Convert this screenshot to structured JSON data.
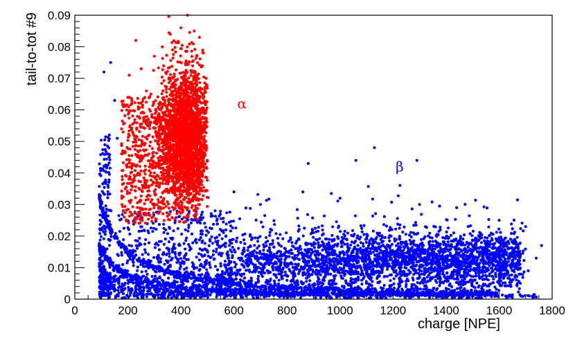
{
  "chart_data": {
    "type": "scatter",
    "title": "",
    "xlabel": "charge [NPE]",
    "ylabel": "tail-to-tot #9",
    "xlim": [
      0,
      1800
    ],
    "ylim": [
      0,
      0.09
    ],
    "x_ticks": [
      "0",
      "200",
      "400",
      "600",
      "800",
      "1000",
      "1200",
      "1400",
      "1600",
      "1800"
    ],
    "y_ticks": [
      "0",
      "0.01",
      "0.02",
      "0.03",
      "0.04",
      "0.05",
      "0.06",
      "0.07",
      "0.08",
      "0.09"
    ],
    "grid": false,
    "legend": "none",
    "series": [
      {
        "color": "#ff0000",
        "label": "α",
        "x_range": [
          170,
          500
        ],
        "y_range": [
          0.023,
          0.09
        ],
        "peak_x": 420,
        "points": [
          [
            230,
            0.082
          ],
          [
            250,
            0.073
          ],
          [
            205,
            0.071
          ],
          [
            215,
            0.062
          ],
          [
            225,
            0.056
          ],
          [
            270,
            0.066
          ],
          [
            300,
            0.077
          ],
          [
            330,
            0.08
          ],
          [
            360,
            0.084
          ],
          [
            400,
            0.086
          ],
          [
            425,
            0.09
          ],
          [
            450,
            0.085
          ],
          [
            470,
            0.083
          ],
          [
            485,
            0.078
          ],
          [
            495,
            0.07
          ],
          [
            420,
            0.075
          ],
          [
            400,
            0.065
          ],
          [
            440,
            0.06
          ],
          [
            380,
            0.05
          ],
          [
            460,
            0.055
          ],
          [
            340,
            0.045
          ],
          [
            480,
            0.047
          ],
          [
            300,
            0.04
          ],
          [
            250,
            0.044
          ],
          [
            210,
            0.038
          ],
          [
            190,
            0.035
          ],
          [
            180,
            0.047
          ],
          [
            280,
            0.052
          ],
          [
            320,
            0.058
          ],
          [
            360,
            0.07
          ]
        ]
      },
      {
        "color": "#0000ff",
        "label": "β",
        "x_range": [
          90,
          1760
        ],
        "y_range": [
          0,
          0.076
        ],
        "points": [
          [
            135,
            0.075
          ],
          [
            110,
            0.072
          ],
          [
            150,
            0.063
          ],
          [
            130,
            0.052
          ],
          [
            160,
            0.051
          ],
          [
            120,
            0.046
          ],
          [
            880,
            0.043
          ],
          [
            1060,
            0.044
          ],
          [
            1130,
            0.048
          ],
          [
            1290,
            0.044
          ],
          [
            600,
            0.034
          ],
          [
            700,
            0.03
          ],
          [
            860,
            0.034
          ],
          [
            1000,
            0.032
          ],
          [
            1300,
            0.03
          ],
          [
            1440,
            0.029
          ],
          [
            1600,
            0.025
          ],
          [
            1700,
            0.023
          ],
          [
            1760,
            0.017
          ],
          [
            1740,
            0.013
          ],
          [
            1710,
            0.009
          ],
          [
            1680,
            0.005
          ],
          [
            1500,
            0.006
          ],
          [
            1100,
            0.005
          ],
          [
            800,
            0.006
          ]
        ]
      }
    ],
    "annotations": [
      {
        "text": "α",
        "x": 630,
        "y": 0.0605,
        "color": "#ff0000"
      },
      {
        "text": "β",
        "x": 1225,
        "y": 0.0405,
        "color": "#0000ff"
      }
    ]
  }
}
